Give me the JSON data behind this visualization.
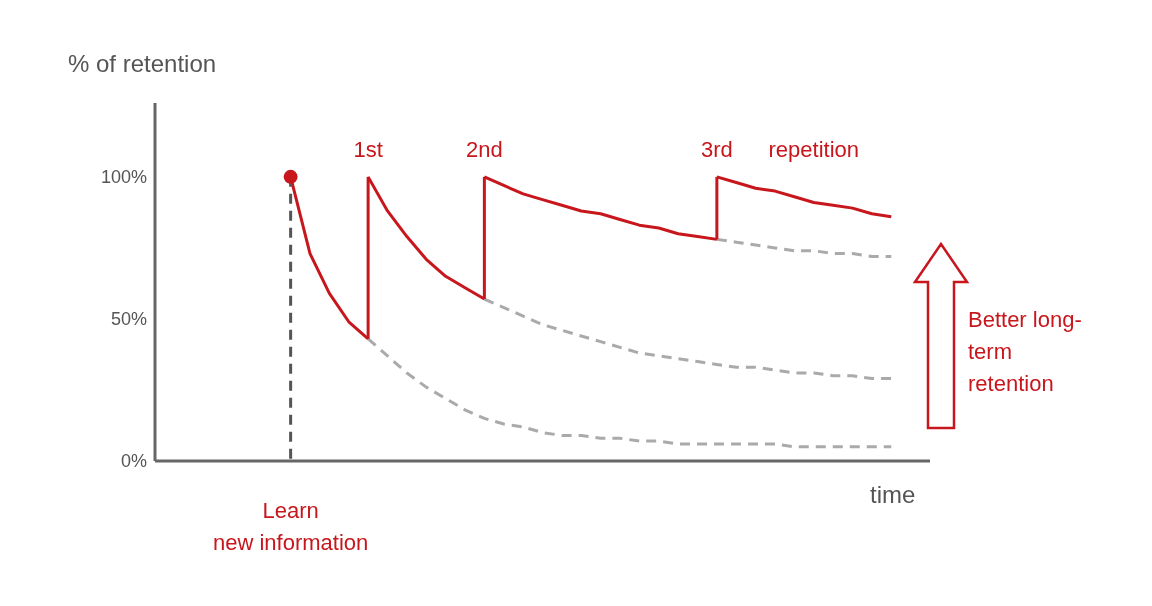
{
  "chart_data": {
    "type": "line",
    "ylabel": "% of retention",
    "xlabel": "time",
    "ylim": [
      0,
      126
    ],
    "yticks": [
      {
        "value": 0,
        "label": "0%"
      },
      {
        "value": 50,
        "label": "50%"
      },
      {
        "value": 100,
        "label": "100%"
      }
    ],
    "tick_labels": "y",
    "categories": [
      null,
      null,
      null,
      null,
      null,
      null,
      null,
      null,
      null,
      null,
      null,
      null,
      null,
      null,
      null,
      null,
      null,
      null,
      null,
      null,
      null,
      null,
      null,
      null,
      null,
      null,
      null,
      null,
      null,
      null,
      null,
      null,
      null,
      null,
      null,
      null,
      null,
      null,
      null,
      null
    ],
    "series": [
      {
        "color": "#aaaaaa",
        "line_style": "dashed",
        "values": [
          null,
          null,
          null,
          null,
          null,
          null,
          null,
          null,
          null,
          null,
          null,
          43,
          37,
          31,
          26,
          22,
          18,
          15,
          13,
          12,
          10,
          9,
          9,
          8,
          8,
          7,
          7,
          6,
          6,
          6,
          6,
          6,
          6,
          5,
          5,
          5,
          5,
          5,
          5,
          null
        ]
      },
      {
        "color": "#aaaaaa",
        "line_style": "dashed",
        "values": [
          null,
          null,
          null,
          null,
          null,
          null,
          null,
          null,
          null,
          null,
          null,
          null,
          null,
          null,
          null,
          null,
          null,
          57,
          54,
          51,
          48,
          46,
          44,
          42,
          40,
          38,
          37,
          36,
          35,
          34,
          33,
          33,
          32,
          31,
          31,
          30,
          30,
          29,
          29,
          null
        ]
      },
      {
        "color": "#aaaaaa",
        "line_style": "dashed",
        "values": [
          null,
          null,
          null,
          null,
          null,
          null,
          null,
          null,
          null,
          null,
          null,
          null,
          null,
          null,
          null,
          null,
          null,
          null,
          null,
          null,
          null,
          null,
          null,
          null,
          null,
          null,
          null,
          null,
          null,
          78,
          77,
          76,
          75,
          74,
          74,
          73,
          73,
          72,
          72,
          null
        ]
      },
      {
        "color": "#c8161d",
        "values": [
          null,
          null,
          null,
          null,
          null,
          null,
          null,
          100,
          73,
          59,
          49,
          43,
          null,
          null,
          null,
          null,
          null,
          null,
          null,
          null,
          null,
          null,
          null,
          null,
          null,
          null,
          null,
          null,
          null,
          null,
          null,
          null,
          null,
          null,
          null,
          null,
          null,
          null,
          null,
          null
        ]
      },
      {
        "color": "#c8161d",
        "values": [
          null,
          null,
          null,
          null,
          null,
          null,
          null,
          null,
          null,
          null,
          null,
          100,
          88,
          79,
          71,
          65,
          61,
          57,
          null,
          null,
          null,
          null,
          null,
          null,
          null,
          null,
          null,
          null,
          null,
          null,
          null,
          null,
          null,
          null,
          null,
          null,
          null,
          null,
          null,
          null
        ]
      },
      {
        "color": "#c8161d",
        "values": [
          null,
          null,
          null,
          null,
          null,
          null,
          null,
          null,
          null,
          null,
          null,
          null,
          null,
          null,
          null,
          null,
          null,
          100,
          97,
          94,
          92,
          90,
          88,
          87,
          85,
          83,
          82,
          80,
          79,
          78,
          null,
          null,
          null,
          null,
          null,
          null,
          null,
          null,
          null,
          null
        ]
      },
      {
        "color": "#c8161d",
        "values": [
          null,
          null,
          null,
          null,
          null,
          null,
          null,
          null,
          null,
          null,
          null,
          null,
          null,
          null,
          null,
          null,
          null,
          null,
          null,
          null,
          null,
          null,
          null,
          null,
          null,
          null,
          null,
          null,
          null,
          100,
          98,
          96,
          95,
          93,
          91,
          90,
          89,
          87,
          86,
          null
        ]
      },
      {
        "type": "scatter",
        "color": "#c8161d",
        "values": [
          null,
          null,
          null,
          null,
          null,
          null,
          null,
          100,
          null,
          null,
          null,
          null,
          null,
          null,
          null,
          null,
          null,
          null,
          null,
          null,
          null,
          null,
          null,
          null,
          null,
          null,
          null,
          null,
          null,
          null,
          null,
          null,
          null,
          null,
          null,
          null,
          null,
          null,
          null,
          null
        ]
      }
    ],
    "annotations": [
      "1st",
      "2nd",
      "3rd",
      "repetition",
      "Learn\nnew information",
      "Better long-term retention"
    ]
  }
}
